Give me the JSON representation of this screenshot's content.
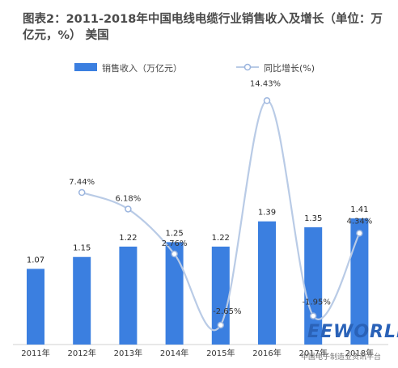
{
  "title": "图表2：2011-2018年中国电线电缆行业销售收入及增长（单位：万亿元，%）     美国",
  "legend": {
    "bar_label": "销售收入（万亿元）",
    "line_label": "同比增长(%)"
  },
  "colors": {
    "bar": "#3b7fe0",
    "line": "#b9cbe6",
    "marker_fill": "#ffffff",
    "marker_stroke": "#9ab4de"
  },
  "chart_data": {
    "type": "bar",
    "categories": [
      "2011年",
      "2012年",
      "2013年",
      "2014年",
      "2015年",
      "2016年",
      "2017年",
      "2018年"
    ],
    "series": [
      {
        "name": "销售收入（万亿元）",
        "type": "bar",
        "values": [
          1.07,
          1.15,
          1.22,
          1.25,
          1.22,
          1.39,
          1.35,
          1.41
        ]
      },
      {
        "name": "同比增长(%)",
        "type": "line",
        "values": [
          null,
          7.44,
          6.18,
          2.76,
          -2.65,
          14.43,
          -1.95,
          4.34
        ]
      }
    ],
    "bar_labels": [
      "1.07",
      "1.15",
      "1.22",
      "1.25",
      "1.22",
      "1.39",
      "1.35",
      "1.41"
    ],
    "line_labels": [
      "",
      "7.44%",
      "6.18%",
      "2.76%",
      "-2.65%",
      "14.43%",
      "-1.95%",
      "4.34%"
    ],
    "legend_position": "top"
  },
  "watermark": {
    "logo": "EEWORLD",
    "sub": "中国电子制造业资讯平台"
  }
}
